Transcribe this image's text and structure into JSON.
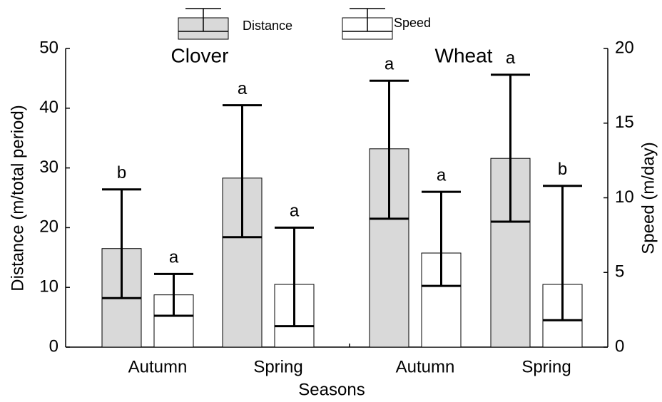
{
  "chart_data": {
    "type": "bar",
    "x_label": "Seasons",
    "y_label": "Distance (m/total period)",
    "y2_label": "Speed (m/day)",
    "groups": [
      "Clover",
      "Wheat"
    ],
    "categories": [
      "Autumn",
      "Spring",
      "Autumn",
      "Spring"
    ],
    "ylim": [
      0,
      50
    ],
    "yticks": [
      0,
      10,
      20,
      30,
      40,
      50
    ],
    "y2lim": [
      0,
      20
    ],
    "y2ticks": [
      0,
      5,
      10,
      15,
      20
    ],
    "legend": "top",
    "series": [
      {
        "name": "Distance",
        "color": "#d9d9d9",
        "values": [
          16.5,
          28.3,
          33.2,
          31.6
        ],
        "error_low": [
          8.2,
          18.4,
          21.5,
          21.0
        ],
        "error_high": [
          26.4,
          40.5,
          44.6,
          45.6
        ],
        "letters": [
          "b",
          "a",
          "a",
          "a"
        ]
      },
      {
        "name": "Speed",
        "color": "#ffffff",
        "axis": "y2",
        "values": [
          3.5,
          4.2,
          6.3,
          4.2
        ],
        "error_low": [
          2.1,
          1.4,
          4.1,
          1.8
        ],
        "error_high": [
          4.9,
          8.0,
          10.4,
          10.8
        ],
        "letters": [
          "a",
          "a",
          "a",
          "b"
        ]
      }
    ]
  }
}
